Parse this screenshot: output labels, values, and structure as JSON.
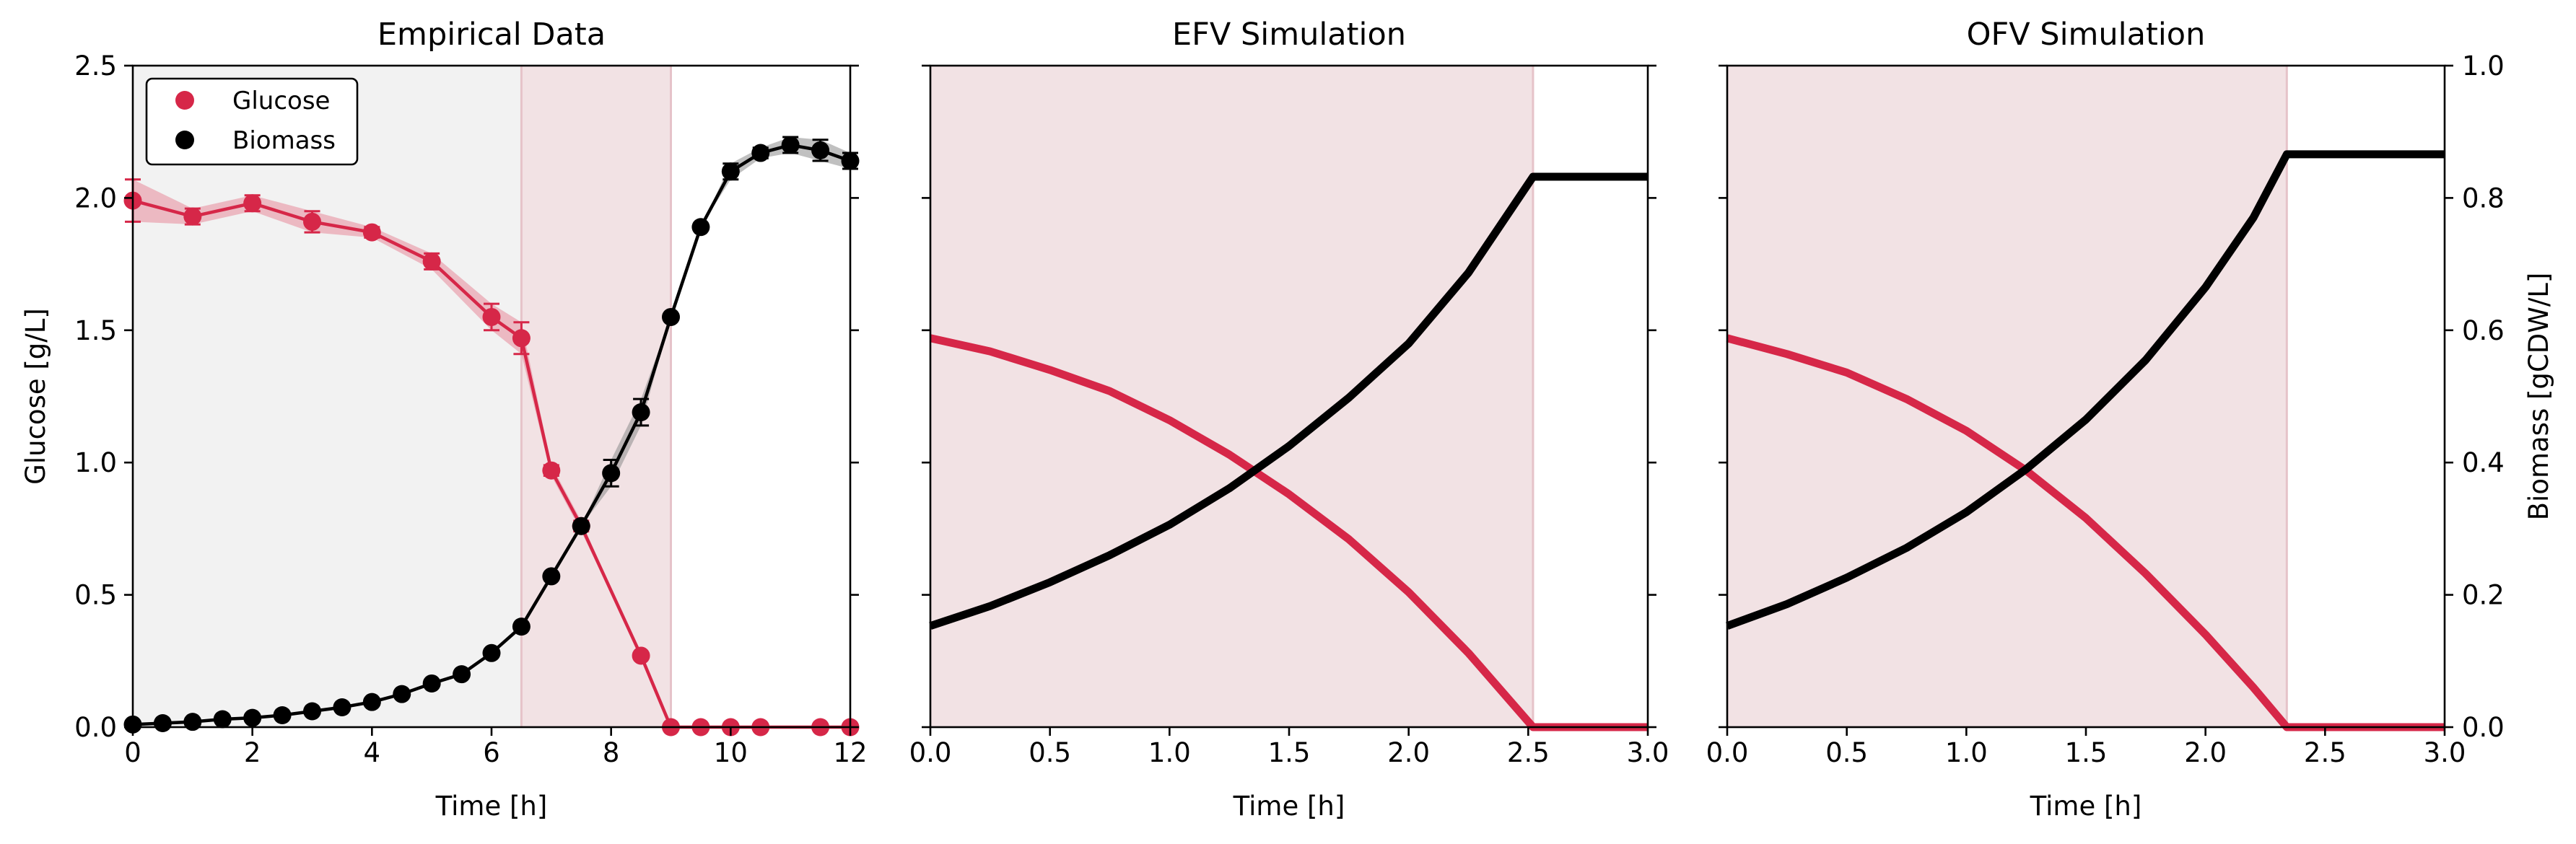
{
  "colors": {
    "glucose": "#d62748",
    "biomass": "#000000",
    "batch_shade": "#f2f2f2",
    "depletion_shade": "#f2e2e4"
  },
  "chart_data": [
    {
      "type": "line",
      "title": "Empirical Data",
      "xlabel": "Time [h]",
      "ylabel": "Glucose [g/L]",
      "xlim": [
        0,
        12
      ],
      "ylim": [
        0,
        2.5
      ],
      "xticks": [
        "0",
        "2",
        "4",
        "6",
        "8",
        "10",
        "12"
      ],
      "yticks": [
        "0.0",
        "0.5",
        "1.0",
        "1.5",
        "2.0",
        "2.5"
      ],
      "legend": {
        "position": "top-left",
        "entries": [
          "Glucose",
          "Biomass"
        ]
      },
      "shaded_regions": [
        {
          "x_start": 0,
          "x_end": 6.5,
          "color": "#f2f2f2"
        },
        {
          "x_start": 6.5,
          "x_end": 9.0,
          "color": "#f2e2e4"
        }
      ],
      "series": [
        {
          "name": "Glucose",
          "axis": "left",
          "markers": true,
          "x": [
            0,
            1,
            2,
            3,
            4,
            5,
            6,
            6.5,
            7,
            7.5,
            8.5,
            9,
            9.5,
            10,
            10.5,
            11.5,
            12
          ],
          "y": [
            1.99,
            1.93,
            1.98,
            1.91,
            1.87,
            1.76,
            1.55,
            1.47,
            0.97,
            0.76,
            0.27,
            0.0,
            0.0,
            0.0,
            0.0,
            0.0,
            0.0
          ],
          "err": [
            0.08,
            0.03,
            0.03,
            0.04,
            0.02,
            0.03,
            0.05,
            0.06,
            0.02,
            0.02,
            0.0,
            0.0,
            0.0,
            0.0,
            0.0,
            0.0,
            0.0
          ]
        },
        {
          "name": "Biomass",
          "axis": "left",
          "markers": true,
          "x": [
            0,
            0.5,
            1,
            1.5,
            2,
            2.5,
            3,
            3.5,
            4,
            4.5,
            5,
            5.5,
            6,
            6.5,
            7,
            7.5,
            8,
            8.5,
            9,
            9.5,
            10,
            10.5,
            11,
            11.5,
            12
          ],
          "y": [
            0.01,
            0.015,
            0.02,
            0.03,
            0.035,
            0.045,
            0.06,
            0.075,
            0.095,
            0.125,
            0.165,
            0.2,
            0.28,
            0.38,
            0.57,
            0.76,
            0.96,
            1.19,
            1.55,
            1.89,
            2.1,
            2.17,
            2.2,
            2.18,
            2.14
          ],
          "err": [
            0.0,
            0.0,
            0.0,
            0.0,
            0.0,
            0.0,
            0.0,
            0.0,
            0.0,
            0.0,
            0.0,
            0.0,
            0.0,
            0.0,
            0.0,
            0.0,
            0.05,
            0.05,
            0.0,
            0.0,
            0.03,
            0.02,
            0.03,
            0.04,
            0.03
          ]
        }
      ]
    },
    {
      "type": "line",
      "title": "EFV Simulation",
      "xlabel": "Time [h]",
      "ylabel": "",
      "xlim": [
        0,
        3.0
      ],
      "ylim": [
        0,
        2.5
      ],
      "y2lim": [
        0,
        1.0
      ],
      "xticks": [
        "0.0",
        "0.5",
        "1.0",
        "1.5",
        "2.0",
        "2.5",
        "3.0"
      ],
      "shaded_regions": [
        {
          "x_start": 0,
          "x_end": 2.52,
          "color": "#f2e2e4"
        }
      ],
      "series": [
        {
          "name": "Glucose",
          "axis": "left",
          "markers": false,
          "x": [
            0,
            0.25,
            0.5,
            0.75,
            1.0,
            1.25,
            1.5,
            1.75,
            2.0,
            2.25,
            2.52,
            2.75,
            3.0
          ],
          "y": [
            1.47,
            1.42,
            1.35,
            1.27,
            1.16,
            1.03,
            0.88,
            0.71,
            0.51,
            0.28,
            0.0,
            0.0,
            0.0
          ]
        },
        {
          "name": "Biomass",
          "axis": "right",
          "markers": false,
          "x": [
            0,
            0.25,
            0.5,
            0.75,
            1.0,
            1.25,
            1.5,
            1.75,
            2.0,
            2.25,
            2.52,
            2.75,
            3.0
          ],
          "y": [
            0.153,
            0.183,
            0.219,
            0.26,
            0.306,
            0.361,
            0.425,
            0.498,
            0.58,
            0.687,
            0.832,
            0.832,
            0.832
          ]
        }
      ]
    },
    {
      "type": "line",
      "title": "OFV Simulation",
      "xlabel": "Time [h]",
      "ylabel": "Biomass [gCDW/L]",
      "xlim": [
        0,
        3.0
      ],
      "ylim": [
        0,
        2.5
      ],
      "y2lim": [
        0,
        1.0
      ],
      "xticks": [
        "0.0",
        "0.5",
        "1.0",
        "1.5",
        "2.0",
        "2.5",
        "3.0"
      ],
      "y2ticks": [
        "0.0",
        "0.2",
        "0.4",
        "0.6",
        "0.8",
        "1.0"
      ],
      "shaded_regions": [
        {
          "x_start": 0,
          "x_end": 2.34,
          "color": "#f2e2e4"
        }
      ],
      "series": [
        {
          "name": "Glucose",
          "axis": "left",
          "markers": false,
          "x": [
            0,
            0.25,
            0.5,
            0.75,
            1.0,
            1.25,
            1.5,
            1.75,
            2.0,
            2.2,
            2.34,
            2.5,
            3.0
          ],
          "y": [
            1.47,
            1.41,
            1.34,
            1.24,
            1.12,
            0.97,
            0.79,
            0.58,
            0.35,
            0.15,
            0.0,
            0.0,
            0.0
          ]
        },
        {
          "name": "Biomass",
          "axis": "right",
          "markers": false,
          "x": [
            0,
            0.25,
            0.5,
            0.75,
            1.0,
            1.25,
            1.5,
            1.75,
            2.0,
            2.2,
            2.34,
            2.5,
            3.0
          ],
          "y": [
            0.153,
            0.186,
            0.226,
            0.271,
            0.325,
            0.39,
            0.465,
            0.555,
            0.665,
            0.77,
            0.866,
            0.866,
            0.866
          ]
        }
      ]
    }
  ]
}
